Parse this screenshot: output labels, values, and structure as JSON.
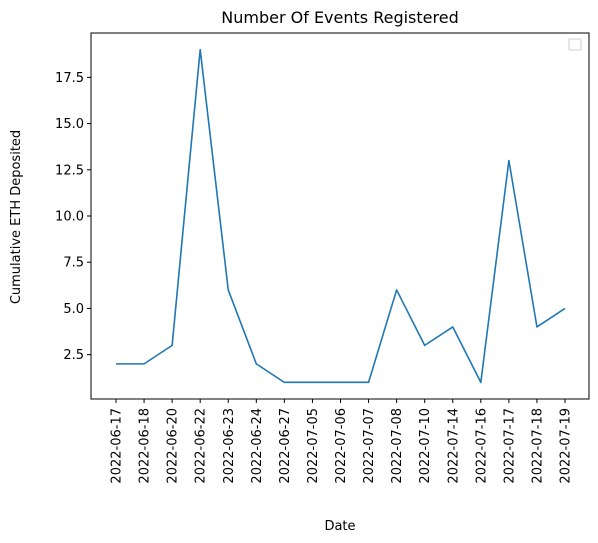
{
  "chart_data": {
    "type": "line",
    "title": "Number Of Events Registered",
    "xlabel": "Date",
    "ylabel": "Cumulative ETH Deposited",
    "categories": [
      "2022-06-17",
      "2022-06-18",
      "2022-06-20",
      "2022-06-22",
      "2022-06-23",
      "2022-06-24",
      "2022-06-27",
      "2022-07-05",
      "2022-07-06",
      "2022-07-07",
      "2022-07-08",
      "2022-07-10",
      "2022-07-14",
      "2022-07-16",
      "2022-07-17",
      "2022-07-18",
      "2022-07-19"
    ],
    "series": [
      {
        "values": [
          2,
          2,
          3,
          19,
          6,
          2,
          1,
          1,
          1,
          1,
          6,
          3,
          4,
          1,
          13,
          4,
          5
        ],
        "color": "#1f77b4"
      }
    ],
    "ylim": [
      0.1,
      19.9
    ],
    "yticks": [
      2.5,
      5.0,
      7.5,
      10.0,
      12.5,
      15.0,
      17.5
    ],
    "ytick_labels": [
      "2.5",
      "5.0",
      "7.5",
      "10.0",
      "12.5",
      "15.0",
      "17.5"
    ],
    "grid": false,
    "legend": "top-right",
    "legend_entries": []
  }
}
